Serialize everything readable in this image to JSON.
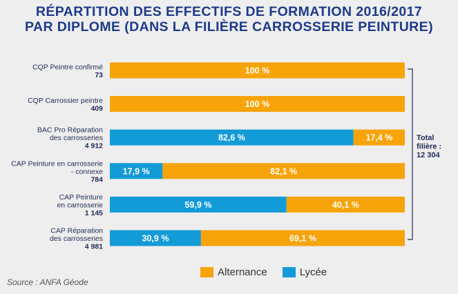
{
  "title": {
    "line1": "RÉPARTITION DES EFFECTIFS DE FORMATION 2016/2017",
    "line2": "PAR DIPLOME (DANS LA FILIÈRE CARROSSERIE PEINTURE)"
  },
  "colors": {
    "alternance": "#f7a30a",
    "lycee": "#139bd8",
    "text": "#1f2a55"
  },
  "chart_data": {
    "type": "bar",
    "orientation": "horizontal",
    "stacked": true,
    "percent_stacked": true,
    "title": "RÉPARTITION DES EFFECTIFS DE FORMATION 2016/2017 PAR DIPLOME (DANS LA FILIÈRE CARROSSERIE PEINTURE)",
    "categories": [
      {
        "lines": [
          "CQP Peintre confirmé"
        ],
        "count": "73"
      },
      {
        "lines": [
          "CQP Carrossier peintre"
        ],
        "count": "409"
      },
      {
        "lines": [
          "BAC Pro Réparation",
          "des carrosseries"
        ],
        "count": "4 912"
      },
      {
        "lines": [
          "CAP Peinture en carrosserie",
          "- connexe"
        ],
        "count": "784"
      },
      {
        "lines": [
          "CAP Peinture",
          "en carrosserie"
        ],
        "count": "1 145"
      },
      {
        "lines": [
          "CAP Réparation",
          "des carrosseries"
        ],
        "count": "4 981"
      }
    ],
    "series": [
      {
        "name": "Lycée",
        "values": [
          0,
          0,
          82.6,
          17.9,
          59.9,
          30.9
        ],
        "labels": [
          "",
          "",
          "82,6 %",
          "17,9 %",
          "59,9 %",
          "30,9 %"
        ]
      },
      {
        "name": "Alternance",
        "values": [
          100,
          100,
          17.4,
          82.1,
          40.1,
          69.1
        ],
        "labels": [
          "100 %",
          "100 %",
          "17,4 %",
          "82,1 %",
          "40,1 %",
          "69,1 %"
        ]
      }
    ],
    "xlim": [
      0,
      100
    ],
    "total": {
      "label_lines": [
        "Total",
        "filière :",
        "12 304"
      ]
    }
  },
  "legend": {
    "alternance": "Alternance",
    "lycee": "Lycée"
  },
  "source": "Source : ANFA Géode"
}
